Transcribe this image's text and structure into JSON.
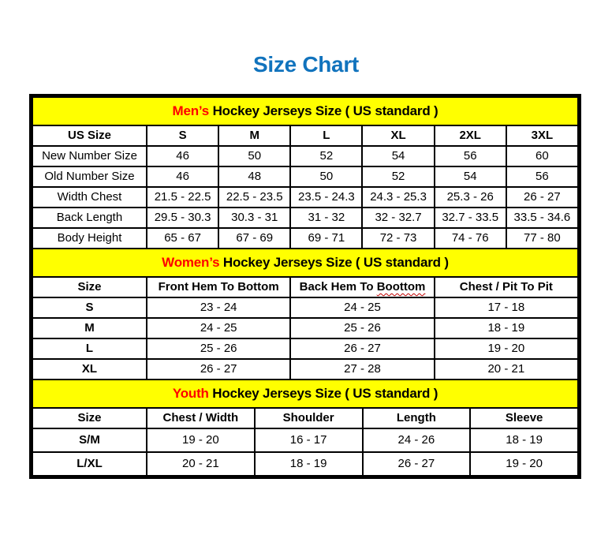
{
  "page": {
    "title": "Size Chart"
  },
  "colors": {
    "title_blue": "#1173BD",
    "band_yellow": "#FFFF00",
    "accent_red": "#FE0000",
    "border_black": "#000000"
  },
  "sections": [
    {
      "name": "mens",
      "band": {
        "accent": "Men’s",
        "rest": " Hockey Jerseys Size ( US standard )"
      },
      "columns": [
        "US Size",
        "S",
        "M",
        "L",
        "XL",
        "2XL",
        "3XL"
      ],
      "rows": [
        {
          "label": "New Number Size",
          "values": [
            "46",
            "50",
            "52",
            "54",
            "56",
            "60"
          ]
        },
        {
          "label": "Old Number Size",
          "values": [
            "46",
            "48",
            "50",
            "52",
            "54",
            "56"
          ]
        },
        {
          "label": "Width Chest",
          "values": [
            "21.5 - 22.5",
            "22.5 - 23.5",
            "23.5 - 24.3",
            "24.3 - 25.3",
            "25.3 - 26",
            "26 - 27"
          ]
        },
        {
          "label": "Back Length",
          "values": [
            "29.5 - 30.3",
            "30.3 - 31",
            "31 - 32",
            "32 - 32.7",
            "32.7 - 33.5",
            "33.5 - 34.6"
          ]
        },
        {
          "label": "Body Height",
          "values": [
            "65 - 67",
            "67 - 69",
            "69 - 71",
            "72 - 73",
            "74 - 76",
            "77 - 80"
          ]
        }
      ]
    },
    {
      "name": "womens",
      "band": {
        "accent": "Women’s",
        "rest": " Hockey Jerseys Size ( US standard )"
      },
      "columns": [
        "Size",
        "Front Hem To Bottom",
        "Back Hem To Boottom",
        "Chest / Pit To Pit"
      ],
      "misspelled": {
        "column": 2,
        "prefix": "Back Hem To ",
        "word": "Boottom"
      },
      "rows": [
        {
          "label": "S",
          "values": [
            "23 - 24",
            "24 - 25",
            "17 - 18"
          ]
        },
        {
          "label": "M",
          "values": [
            "24 - 25",
            "25 - 26",
            "18 - 19"
          ]
        },
        {
          "label": "L",
          "values": [
            "25 - 26",
            "26 - 27",
            "19 - 20"
          ]
        },
        {
          "label": "XL",
          "values": [
            "26 - 27",
            "27 - 28",
            "20 - 21"
          ]
        }
      ]
    },
    {
      "name": "youth",
      "band": {
        "accent": "Youth",
        "rest": " Hockey Jerseys Size ( US standard )"
      },
      "columns": [
        "Size",
        "Chest / Width",
        "Shoulder",
        "Length",
        "Sleeve"
      ],
      "rows": [
        {
          "label": "S/M",
          "values": [
            "19 - 20",
            "16 - 17",
            "24 - 26",
            "18 - 19"
          ]
        },
        {
          "label": "L/XL",
          "values": [
            "20 - 21",
            "18 - 19",
            "26 - 27",
            "19 - 20"
          ]
        }
      ]
    }
  ]
}
